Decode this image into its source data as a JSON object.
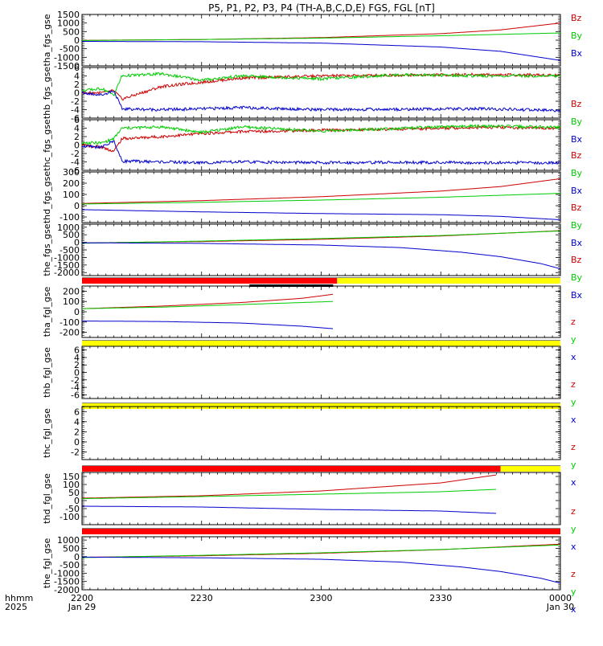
{
  "title": "P5, P1, P2, P3, P4 (TH-A,B,C,D,E) FGS, FGL [nT]",
  "colors": {
    "z": "#cc0000",
    "y": "#00cc00",
    "x": "#0000cc",
    "bar_red": "#ff0000",
    "bar_yellow": "#ffff00",
    "bar_black": "#000000"
  },
  "x_axis": {
    "corner_label_1": "hhmm",
    "corner_label_2": "2025",
    "ticks": [
      {
        "pos": 0,
        "label": "2200",
        "sub": "Jan 29"
      },
      {
        "pos": 30,
        "label": "2230",
        "sub": ""
      },
      {
        "pos": 60,
        "label": "2300",
        "sub": ""
      },
      {
        "pos": 90,
        "label": "2330",
        "sub": ""
      },
      {
        "pos": 120,
        "label": "0000",
        "sub": "Jan 30"
      }
    ],
    "range": [
      0,
      120
    ],
    "unit": "minutes after 2200"
  },
  "chart_data": [
    {
      "type": "line",
      "ylabel": "tha_fgs_gse",
      "ylim": [
        -1500,
        1500
      ],
      "yticks": [
        1500,
        1000,
        500,
        0,
        -500,
        -1000,
        -1500
      ],
      "legend": [
        "Bz",
        "By",
        "Bx"
      ],
      "series": [
        {
          "name": "Bz",
          "x": [
            0,
            30,
            60,
            90,
            105,
            120
          ],
          "y": [
            -10,
            40,
            150,
            380,
            600,
            1000
          ]
        },
        {
          "name": "By",
          "x": [
            0,
            30,
            60,
            90,
            120
          ],
          "y": [
            -20,
            40,
            120,
            260,
            420
          ]
        },
        {
          "name": "Bx",
          "x": [
            0,
            30,
            60,
            90,
            105,
            120
          ],
          "y": [
            -70,
            -90,
            -170,
            -400,
            -650,
            -1180
          ]
        }
      ]
    },
    {
      "type": "line",
      "ylabel": "thb_fgs_gse",
      "ylim": [
        -6,
        6
      ],
      "yticks": [
        6,
        4,
        2,
        0,
        -2,
        -4,
        -6
      ],
      "legend": [
        "Bz",
        "By",
        "Bx"
      ],
      "series": [
        {
          "name": "Bz",
          "x": [
            0,
            5,
            8,
            10,
            20,
            30,
            40,
            60,
            80,
            100,
            120
          ],
          "y": [
            0,
            0,
            0.5,
            -1.5,
            1.5,
            2.5,
            3.5,
            4,
            4.2,
            4.3,
            4.2
          ]
        },
        {
          "name": "By",
          "x": [
            0,
            5,
            8,
            10,
            20,
            30,
            40,
            60,
            80,
            100,
            120
          ],
          "y": [
            0.5,
            1,
            -0.5,
            4,
            4.5,
            3,
            4,
            3.3,
            4.3,
            4,
            4
          ]
        },
        {
          "name": "Bx",
          "x": [
            0,
            5,
            8,
            10,
            20,
            30,
            40,
            60,
            80,
            100,
            120
          ],
          "y": [
            0,
            -0.5,
            0.5,
            -3.8,
            -4,
            -3.8,
            -3.5,
            -4,
            -3.9,
            -3.8,
            -4.2
          ]
        }
      ]
    },
    {
      "type": "line",
      "ylabel": "thc_fgs_gse",
      "ylim": [
        -6,
        6
      ],
      "yticks": [
        6,
        4,
        2,
        0,
        -2,
        -4,
        -6
      ],
      "legend": [
        "Bz",
        "By",
        "Bx"
      ],
      "series": [
        {
          "name": "Bz",
          "x": [
            0,
            5,
            8,
            10,
            20,
            30,
            40,
            60,
            80,
            100,
            120
          ],
          "y": [
            0,
            -0.5,
            -1.5,
            1.5,
            2,
            2.7,
            3.2,
            3.5,
            3.8,
            4.2,
            4
          ]
        },
        {
          "name": "By",
          "x": [
            0,
            5,
            8,
            10,
            20,
            30,
            40,
            60,
            80,
            100,
            120
          ],
          "y": [
            0.5,
            0.5,
            1.5,
            4,
            4.3,
            3,
            4.3,
            3.3,
            4,
            4.5,
            4.2
          ]
        },
        {
          "name": "Bx",
          "x": [
            0,
            5,
            8,
            10,
            20,
            30,
            40,
            60,
            80,
            100,
            120
          ],
          "y": [
            -0.3,
            -0.5,
            1,
            -3.8,
            -4,
            -4.2,
            -4,
            -4.2,
            -4.1,
            -4.2,
            -4.2
          ]
        }
      ]
    },
    {
      "type": "line",
      "ylabel": "thd_fgs_gse",
      "ylim": [
        -150,
        300
      ],
      "yticks": [
        300,
        200,
        100,
        0,
        -100
      ],
      "legend": [
        "Bz",
        "By",
        "Bx"
      ],
      "series": [
        {
          "name": "Bz",
          "x": [
            0,
            30,
            60,
            90,
            105,
            120
          ],
          "y": [
            20,
            45,
            80,
            130,
            170,
            240
          ]
        },
        {
          "name": "By",
          "x": [
            0,
            30,
            60,
            90,
            120
          ],
          "y": [
            15,
            30,
            50,
            75,
            110
          ]
        },
        {
          "name": "Bx",
          "x": [
            0,
            30,
            60,
            90,
            105,
            120
          ],
          "y": [
            -35,
            -55,
            -70,
            -80,
            -95,
            -125
          ]
        }
      ]
    },
    {
      "type": "line",
      "ylabel": "the_fgs_gse",
      "ylim": [
        -2200,
        1200
      ],
      "yticks": [
        1000,
        500,
        0,
        -500,
        -1000,
        -1500,
        -2000
      ],
      "legend": [
        "Bz",
        "By",
        "Bx"
      ],
      "series": [
        {
          "name": "Bz",
          "x": [
            0,
            30,
            60,
            90,
            120
          ],
          "y": [
            -40,
            50,
            200,
            420,
            770
          ]
        },
        {
          "name": "By",
          "x": [
            0,
            30,
            60,
            90,
            120
          ],
          "y": [
            -60,
            80,
            250,
            450,
            750
          ]
        },
        {
          "name": "Bx",
          "x": [
            0,
            30,
            60,
            80,
            95,
            105,
            115,
            120
          ],
          "y": [
            -30,
            -70,
            -180,
            -350,
            -650,
            -950,
            -1400,
            -1750
          ]
        }
      ]
    },
    {
      "type": "line",
      "ylabel": "tha_fgl_gse",
      "ylim": [
        -250,
        250
      ],
      "yticks": [
        200,
        100,
        0,
        -100,
        -200
      ],
      "legend": [
        "z",
        "y",
        "x"
      ],
      "bars": [
        {
          "color": "bar_red",
          "x": [
            0,
            64
          ]
        },
        {
          "color": "bar_yellow",
          "x": [
            64,
            120
          ]
        },
        {
          "color": "bar_black",
          "x": [
            42,
            63
          ]
        }
      ],
      "series": [
        {
          "name": "z",
          "x": [
            0,
            20,
            40,
            55,
            63
          ],
          "y": [
            30,
            55,
            90,
            130,
            170
          ]
        },
        {
          "name": "y",
          "x": [
            0,
            20,
            40,
            63
          ],
          "y": [
            30,
            45,
            70,
            100
          ]
        },
        {
          "name": "x",
          "x": [
            0,
            20,
            40,
            55,
            63
          ],
          "y": [
            -90,
            -95,
            -110,
            -140,
            -165
          ]
        }
      ]
    },
    {
      "type": "line",
      "ylabel": "thb_fgl_gse",
      "ylim": [
        -7,
        7
      ],
      "yticks": [
        6,
        4,
        2,
        0,
        -2,
        -4,
        -6
      ],
      "legend": [
        "z",
        "y",
        "x"
      ],
      "bars": [
        {
          "color": "bar_yellow",
          "x": [
            0,
            120
          ]
        }
      ],
      "series": []
    },
    {
      "type": "line",
      "ylabel": "thc_fgl_gse",
      "ylim": [
        -3.5,
        7
      ],
      "yticks": [
        6,
        4,
        2,
        0,
        -2
      ],
      "legend": [
        "z",
        "y",
        "x"
      ],
      "bars": [
        {
          "color": "bar_yellow",
          "x": [
            0,
            120
          ]
        }
      ],
      "series": []
    },
    {
      "type": "line",
      "ylabel": "thd_fgl_gse",
      "ylim": [
        -150,
        175
      ],
      "yticks": [
        150,
        100,
        50,
        0,
        -50,
        -100
      ],
      "legend": [
        "z",
        "y",
        "x"
      ],
      "bars": [
        {
          "color": "bar_red",
          "x": [
            0,
            105
          ]
        },
        {
          "color": "bar_yellow",
          "x": [
            105,
            120
          ]
        }
      ],
      "series": [
        {
          "name": "z",
          "x": [
            0,
            30,
            60,
            90,
            104
          ],
          "y": [
            15,
            30,
            60,
            110,
            160
          ]
        },
        {
          "name": "y",
          "x": [
            0,
            30,
            60,
            90,
            104
          ],
          "y": [
            12,
            25,
            40,
            55,
            70
          ]
        },
        {
          "name": "x",
          "x": [
            0,
            30,
            60,
            90,
            104
          ],
          "y": [
            -35,
            -40,
            -55,
            -65,
            -80
          ]
        }
      ]
    },
    {
      "type": "line",
      "ylabel": "the_fgl_gse",
      "ylim": [
        -2000,
        1200
      ],
      "yticks": [
        1000,
        500,
        0,
        -500,
        -1000,
        -1500,
        -2000
      ],
      "legend": [
        "z",
        "y",
        "x"
      ],
      "bars": [
        {
          "color": "bar_red",
          "x": [
            0,
            120
          ]
        }
      ],
      "series": [
        {
          "name": "z",
          "x": [
            0,
            30,
            60,
            90,
            120
          ],
          "y": [
            -40,
            50,
            200,
            420,
            750
          ]
        },
        {
          "name": "y",
          "x": [
            0,
            30,
            60,
            90,
            120
          ],
          "y": [
            -60,
            80,
            230,
            430,
            700
          ]
        },
        {
          "name": "x",
          "x": [
            0,
            30,
            60,
            80,
            95,
            105,
            115,
            120
          ],
          "y": [
            -30,
            -70,
            -160,
            -330,
            -620,
            -900,
            -1300,
            -1600
          ]
        }
      ]
    }
  ]
}
